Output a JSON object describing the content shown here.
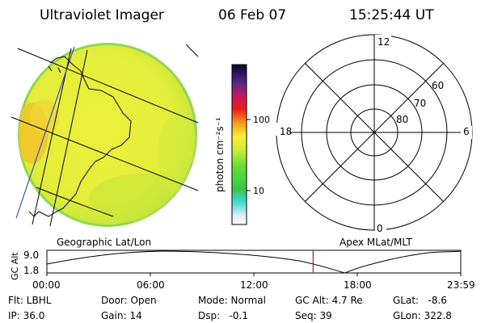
{
  "header": {
    "title": "Ultraviolet Imager",
    "date": "06 Feb 07",
    "time": "15:25:44 UT"
  },
  "colorbar": {
    "unit_label": "photon cm⁻²s⁻¹",
    "ticks": [
      "100",
      "10"
    ]
  },
  "polar": {
    "mlt_labels": {
      "top": "12",
      "left": "18",
      "right": "6",
      "bottom": "0"
    },
    "mlat_labels": [
      "60",
      "70",
      "80"
    ]
  },
  "timeline": {
    "left_label": "Geographic Lat/Lon",
    "right_label": "Apex MLat/MLT",
    "axis_label": "GC Alt",
    "y_ticks": [
      "9.0",
      "1.8"
    ],
    "x_ticks": [
      "00:00",
      "06:00",
      "12:00",
      "18:00",
      "23:59"
    ],
    "marker_time": "15:25:44",
    "marker_color": "#e41a1c"
  },
  "info": {
    "flt": "Flt: LBHL",
    "ip": "IP: 36.0",
    "door": "Door: Open",
    "gain": "Gain: 14",
    "mode": "Mode: Normal",
    "dsp": "Dsp:   -0.1",
    "gcalt": "GC Alt: 4.7 Re",
    "seq": "Seq: 39",
    "glat": "GLat:   -8.6",
    "glon": "GLon: 322.8"
  },
  "colors": {
    "disk_main": "#e8ef3a",
    "disk_edge": "#9ddc3c",
    "disk_warm": "#f4c62a",
    "marker": "#e41a1c"
  }
}
